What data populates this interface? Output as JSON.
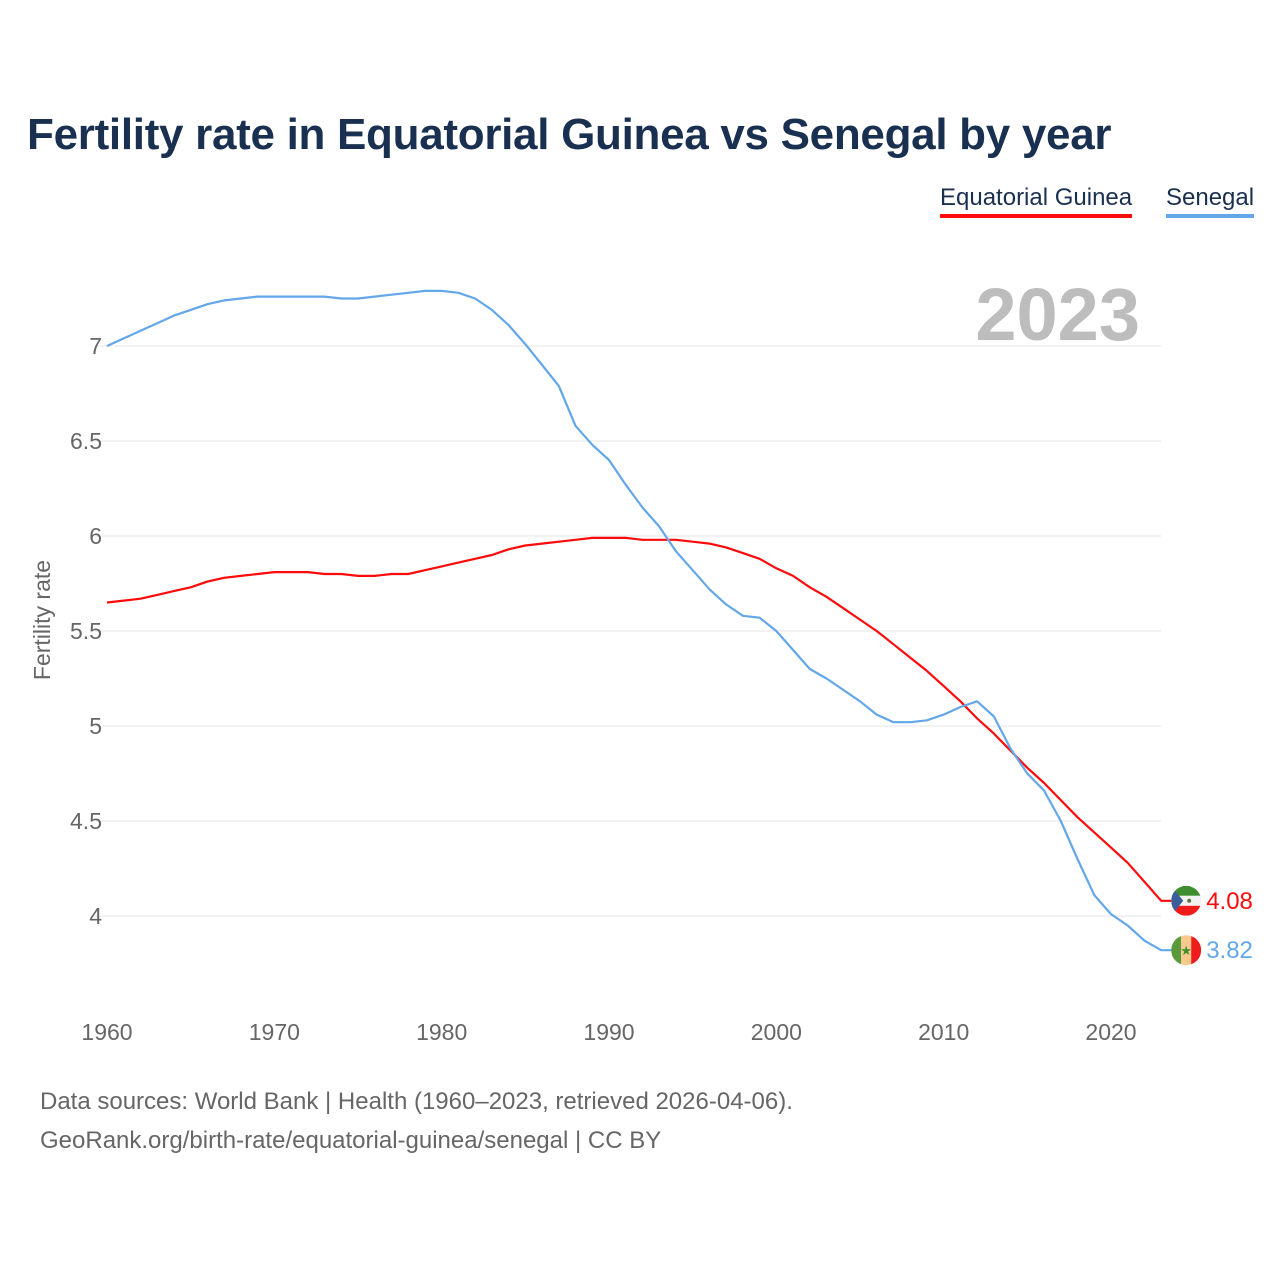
{
  "chart_data": {
    "type": "line",
    "title": "Fertility rate in Equatorial Guinea vs Senegal by year",
    "xlabel": "",
    "ylabel": "Fertility rate",
    "xlim": [
      1960,
      2023
    ],
    "ylim": [
      3.6,
      7.4
    ],
    "grid": true,
    "legend_position": "top-right",
    "year_watermark": "2023",
    "x_ticks": [
      1960,
      1970,
      1980,
      1990,
      2000,
      2010,
      2020
    ],
    "y_ticks": [
      4,
      4.5,
      5,
      5.5,
      6,
      6.5,
      7
    ],
    "y_tick_labels": [
      "4",
      "4.5",
      "5",
      "5.5",
      "6",
      "6.5",
      "7"
    ],
    "x_tick_labels": [
      "1960",
      "1970",
      "1980",
      "1990",
      "2000",
      "2010",
      "2020"
    ],
    "x": [
      1960,
      1961,
      1962,
      1963,
      1964,
      1965,
      1966,
      1967,
      1968,
      1969,
      1970,
      1971,
      1972,
      1973,
      1974,
      1975,
      1976,
      1977,
      1978,
      1979,
      1980,
      1981,
      1982,
      1983,
      1984,
      1985,
      1986,
      1987,
      1988,
      1989,
      1990,
      1991,
      1992,
      1993,
      1994,
      1995,
      1996,
      1997,
      1998,
      1999,
      2000,
      2001,
      2002,
      2003,
      2004,
      2005,
      2006,
      2007,
      2008,
      2009,
      2010,
      2011,
      2012,
      2013,
      2014,
      2015,
      2016,
      2017,
      2018,
      2019,
      2020,
      2021,
      2022,
      2023
    ],
    "series": [
      {
        "name": "Equatorial Guinea",
        "color": "#ff0a0a",
        "end_label": "4.08",
        "flag": "equatorial-guinea-flag",
        "values": [
          5.65,
          5.66,
          5.67,
          5.69,
          5.71,
          5.73,
          5.76,
          5.78,
          5.79,
          5.8,
          5.81,
          5.81,
          5.81,
          5.8,
          5.8,
          5.79,
          5.79,
          5.8,
          5.8,
          5.82,
          5.84,
          5.86,
          5.88,
          5.9,
          5.93,
          5.95,
          5.96,
          5.97,
          5.98,
          5.99,
          5.99,
          5.99,
          5.98,
          5.98,
          5.98,
          5.97,
          5.96,
          5.94,
          5.91,
          5.88,
          5.83,
          5.79,
          5.73,
          5.68,
          5.62,
          5.56,
          5.5,
          5.43,
          5.36,
          5.29,
          5.21,
          5.13,
          5.04,
          4.96,
          4.87,
          4.78,
          4.7,
          4.61,
          4.52,
          4.44,
          4.36,
          4.28,
          4.18,
          4.08
        ]
      },
      {
        "name": "Senegal",
        "color": "#63a7ea",
        "end_label": "3.82",
        "flag": "senegal-flag",
        "values": [
          7.0,
          7.04,
          7.08,
          7.12,
          7.16,
          7.19,
          7.22,
          7.24,
          7.25,
          7.26,
          7.26,
          7.26,
          7.26,
          7.26,
          7.25,
          7.25,
          7.26,
          7.27,
          7.28,
          7.29,
          7.29,
          7.28,
          7.25,
          7.19,
          7.11,
          7.01,
          6.9,
          6.79,
          6.58,
          6.48,
          6.4,
          6.27,
          6.15,
          6.05,
          5.92,
          5.82,
          5.72,
          5.64,
          5.58,
          5.57,
          5.5,
          5.4,
          5.3,
          5.25,
          5.19,
          5.13,
          5.06,
          5.02,
          5.02,
          5.03,
          5.06,
          5.1,
          5.13,
          5.05,
          4.88,
          4.75,
          4.66,
          4.5,
          4.3,
          4.11,
          4.01,
          3.95,
          3.87,
          3.82
        ]
      }
    ]
  },
  "footer": {
    "sources": "Data sources: World Bank | Health (1960–2023, retrieved 2026-04-06).",
    "attribution": "GeoRank.org/birth-rate/equatorial-guinea/senegal | CC BY"
  }
}
